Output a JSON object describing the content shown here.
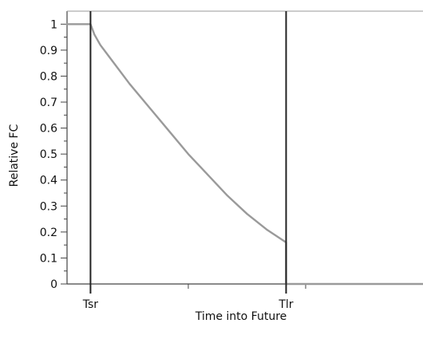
{
  "chart_data": {
    "type": "line",
    "title": "",
    "xlabel": "Time into Future",
    "ylabel": "Relative  FC",
    "ylim": [
      0,
      1.05
    ],
    "yticks": [
      0,
      0.1,
      0.2,
      0.3,
      0.4,
      0.5,
      0.6,
      0.7,
      0.8,
      0.9,
      1
    ],
    "ytick_labels": [
      "0",
      "0.1",
      "0.2",
      "0.3",
      "0.4",
      "0.5",
      "0.6",
      "0.7",
      "0.8",
      "0.9",
      "1"
    ],
    "xlim": [
      -0.12,
      1.7
    ],
    "x_tick_labels": [
      {
        "x": 0,
        "label": "Tsr"
      },
      {
        "x": 1,
        "label": "Tlr"
      }
    ],
    "minor_x_ticks": [
      0.5,
      1.1
    ],
    "vertical_lines": [
      {
        "x": 0,
        "label": "Tsr"
      },
      {
        "x": 1,
        "label": "Tlr"
      }
    ],
    "series": [
      {
        "points": [
          {
            "x": -0.12,
            "y": 1.0
          },
          {
            "x": 0.0,
            "y": 1.0
          },
          {
            "x": 0.02,
            "y": 0.96
          },
          {
            "x": 0.05,
            "y": 0.92
          },
          {
            "x": 0.1,
            "y": 0.87
          },
          {
            "x": 0.2,
            "y": 0.77
          },
          {
            "x": 0.3,
            "y": 0.68
          },
          {
            "x": 0.4,
            "y": 0.59
          },
          {
            "x": 0.5,
            "y": 0.5
          },
          {
            "x": 0.6,
            "y": 0.42
          },
          {
            "x": 0.7,
            "y": 0.34
          },
          {
            "x": 0.8,
            "y": 0.27
          },
          {
            "x": 0.9,
            "y": 0.21
          },
          {
            "x": 0.99,
            "y": 0.165
          },
          {
            "x": 1.0,
            "y": 0.16
          },
          {
            "x": 1.0,
            "y": 0.0
          },
          {
            "x": 1.7,
            "y": 0.0
          }
        ]
      }
    ],
    "colors": {
      "curve": "#9a9a9a",
      "axis": "#444444",
      "vertical_line": "#222222",
      "text": "#111111"
    }
  }
}
